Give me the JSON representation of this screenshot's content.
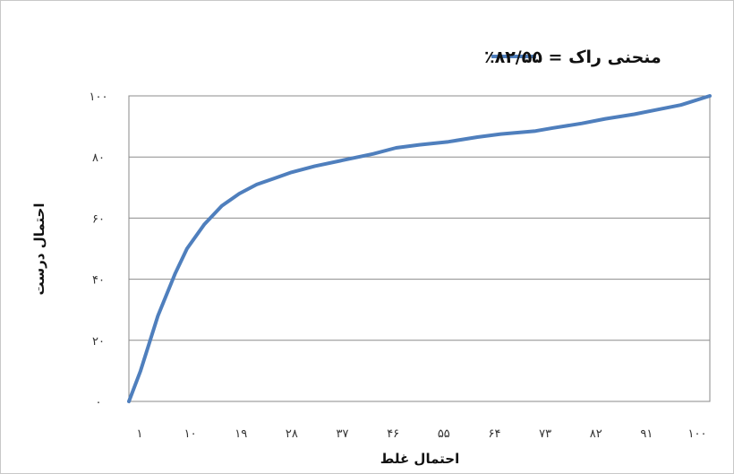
{
  "chart_data": {
    "type": "line",
    "title": "",
    "xlabel": "احتمال غلط",
    "ylabel": "احتمال درست",
    "xlim": [
      0,
      100
    ],
    "ylim": [
      0,
      100
    ],
    "x_tick_labels": [
      "۱",
      "۱۰",
      "۱۹",
      "۲۸",
      "۳۷",
      "۴۶",
      "۵۵",
      "۶۴",
      "۷۳",
      "۸۲",
      "۹۱",
      "۱۰۰"
    ],
    "y_tick_labels": [
      "۰",
      "۲۰",
      "۴۰",
      "۶۰",
      "۸۰",
      "۱۰۰"
    ],
    "legend_position": "top",
    "grid": "horizontal",
    "series": [
      {
        "name": "منحنی راک = ۸۲/۵۵٪",
        "color": "#4f7fbd",
        "x": [
          0,
          2,
          5,
          8,
          10,
          13,
          16,
          19,
          22,
          25,
          28,
          32,
          37,
          42,
          46,
          50,
          55,
          60,
          64,
          70,
          73,
          78,
          82,
          87,
          91,
          95,
          100
        ],
        "y": [
          0,
          10,
          28,
          42,
          50,
          58,
          64,
          68,
          71,
          73,
          75,
          77,
          79,
          81,
          83,
          84,
          85,
          86.5,
          87.5,
          88.5,
          89.5,
          91,
          92.5,
          94,
          95.5,
          97,
          100
        ]
      }
    ]
  }
}
